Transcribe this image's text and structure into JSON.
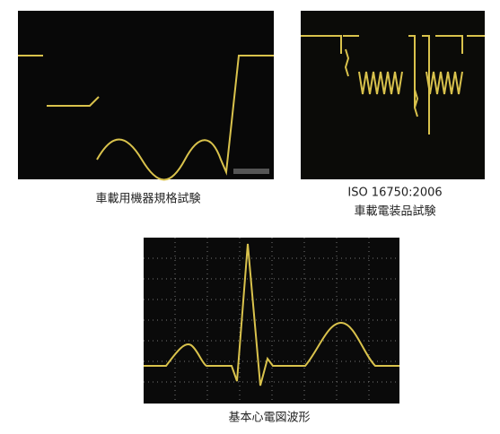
{
  "panels": [
    {
      "caption_lines": [
        "車載用機器規格試験"
      ]
    },
    {
      "caption_lines": [
        "ISO 16750:2006",
        "車載電装品試験"
      ]
    },
    {
      "caption_lines": [
        "基本心電図波形"
      ]
    }
  ]
}
